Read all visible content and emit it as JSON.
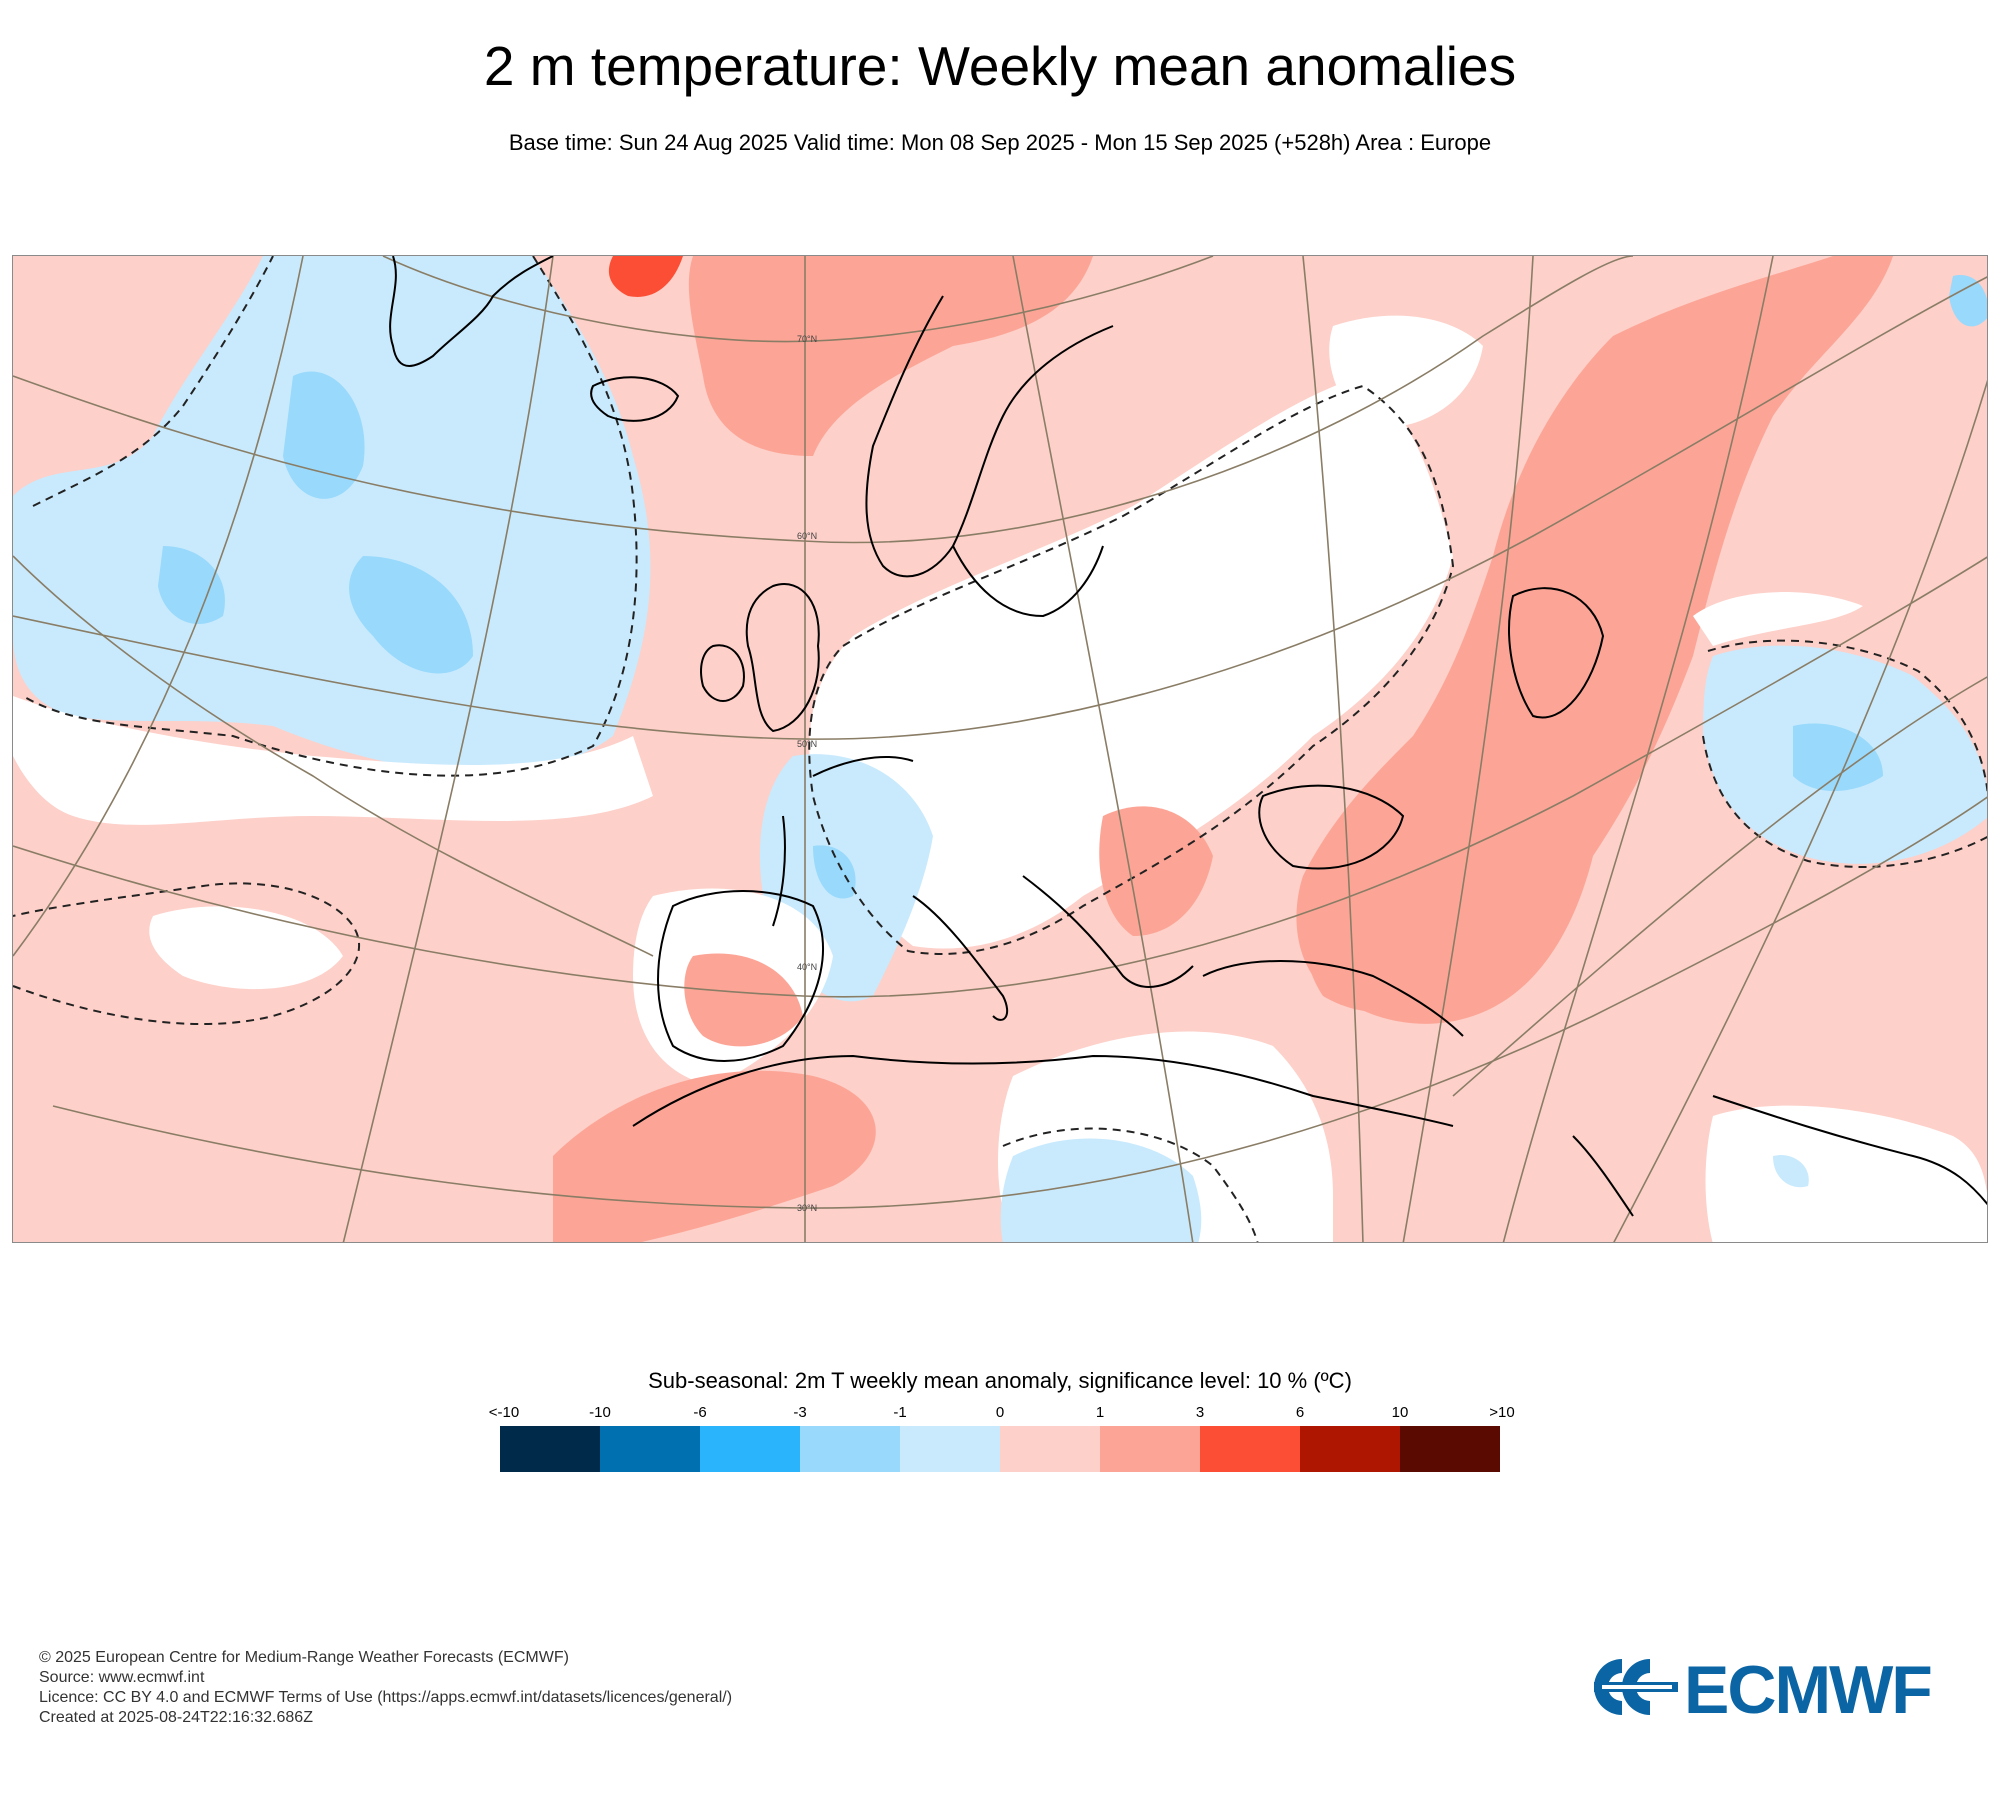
{
  "title": "2 m temperature: Weekly mean anomalies",
  "subtitle": "Base time: Sun 24 Aug 2025 Valid time: Mon 08 Sep 2025 - Mon 15 Sep 2025 (+528h) Area : Europe",
  "map": {
    "latitude_labels": [
      "70°N",
      "60°N",
      "50°N",
      "40°N",
      "30°N"
    ],
    "anomaly_colors": {
      "cold_1_to_0": "#c9eafd",
      "cold_3_to_1": "#99d9fc",
      "neutral": "#ffffff",
      "warm_0_to_1": "#fdd0c9",
      "warm_1_to_3": "#fca596",
      "warm_3_to_6": "#fb4e34",
      "coast": "#000000",
      "graticule": "#8a7d66"
    }
  },
  "legend": {
    "title": "Sub-seasonal: 2m T weekly mean anomaly, significance level: 10 % (ºC)",
    "ticks": [
      "<-10",
      "-10",
      "-6",
      "-3",
      "-1",
      "0",
      "1",
      "3",
      "6",
      "10",
      ">10"
    ],
    "colors": [
      "#002a4a",
      "#0070b1",
      "#2ab4fc",
      "#99d9fc",
      "#c9eafd",
      "#fdd0c9",
      "#fca596",
      "#fb4e34",
      "#ae1602",
      "#5a0a00"
    ]
  },
  "footer": {
    "copyright": "© 2025 European Centre for Medium-Range Weather Forecasts (ECMWF)",
    "source": "Source: www.ecmwf.int",
    "licence": "Licence: CC BY 4.0 and ECMWF Terms of Use (https://apps.ecmwf.int/datasets/licences/general/)",
    "created": "Created at 2025-08-24T22:16:32.686Z"
  },
  "logo": {
    "text": "ECMWF",
    "color": "#0b65a5"
  }
}
